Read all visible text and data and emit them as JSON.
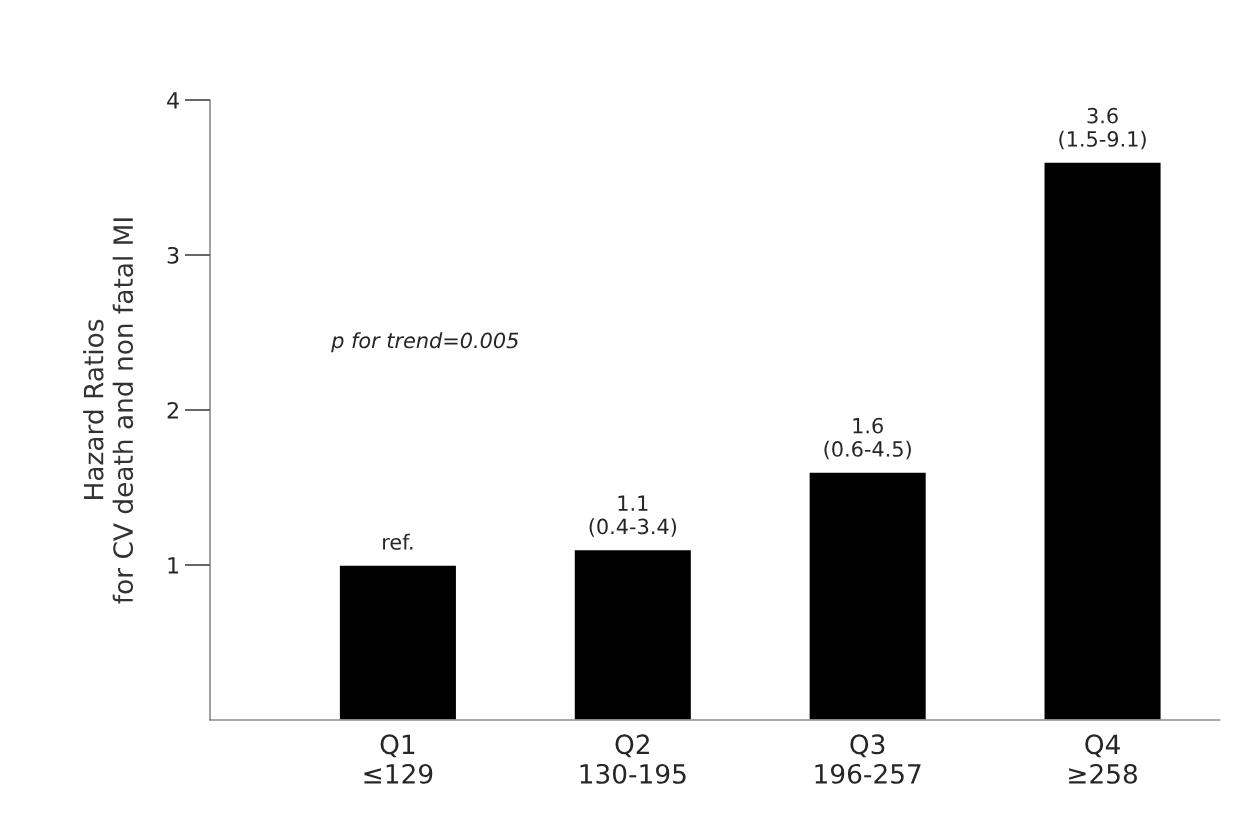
{
  "chart_data": {
    "type": "bar",
    "ylabel": "Hazard Ratios\nfor CV death and non fatal MI",
    "categories": [
      "Q1\n≤129",
      "Q2\n130-195",
      "Q3\n196-257",
      "Q4\n≥258"
    ],
    "values": [
      1.0,
      1.1,
      1.6,
      3.6
    ],
    "value_labels": [
      "ref.",
      "1.1\n(0.4-3.4)",
      "1.6\n(0.6-4.5)",
      "3.6\n(1.5-9.1)"
    ],
    "color": "#000000",
    "ylim": [
      0,
      4
    ],
    "yticks": [
      1,
      2,
      3,
      4
    ],
    "grid": false,
    "legend": false,
    "annotations": [
      "p for trend=0.005"
    ]
  }
}
